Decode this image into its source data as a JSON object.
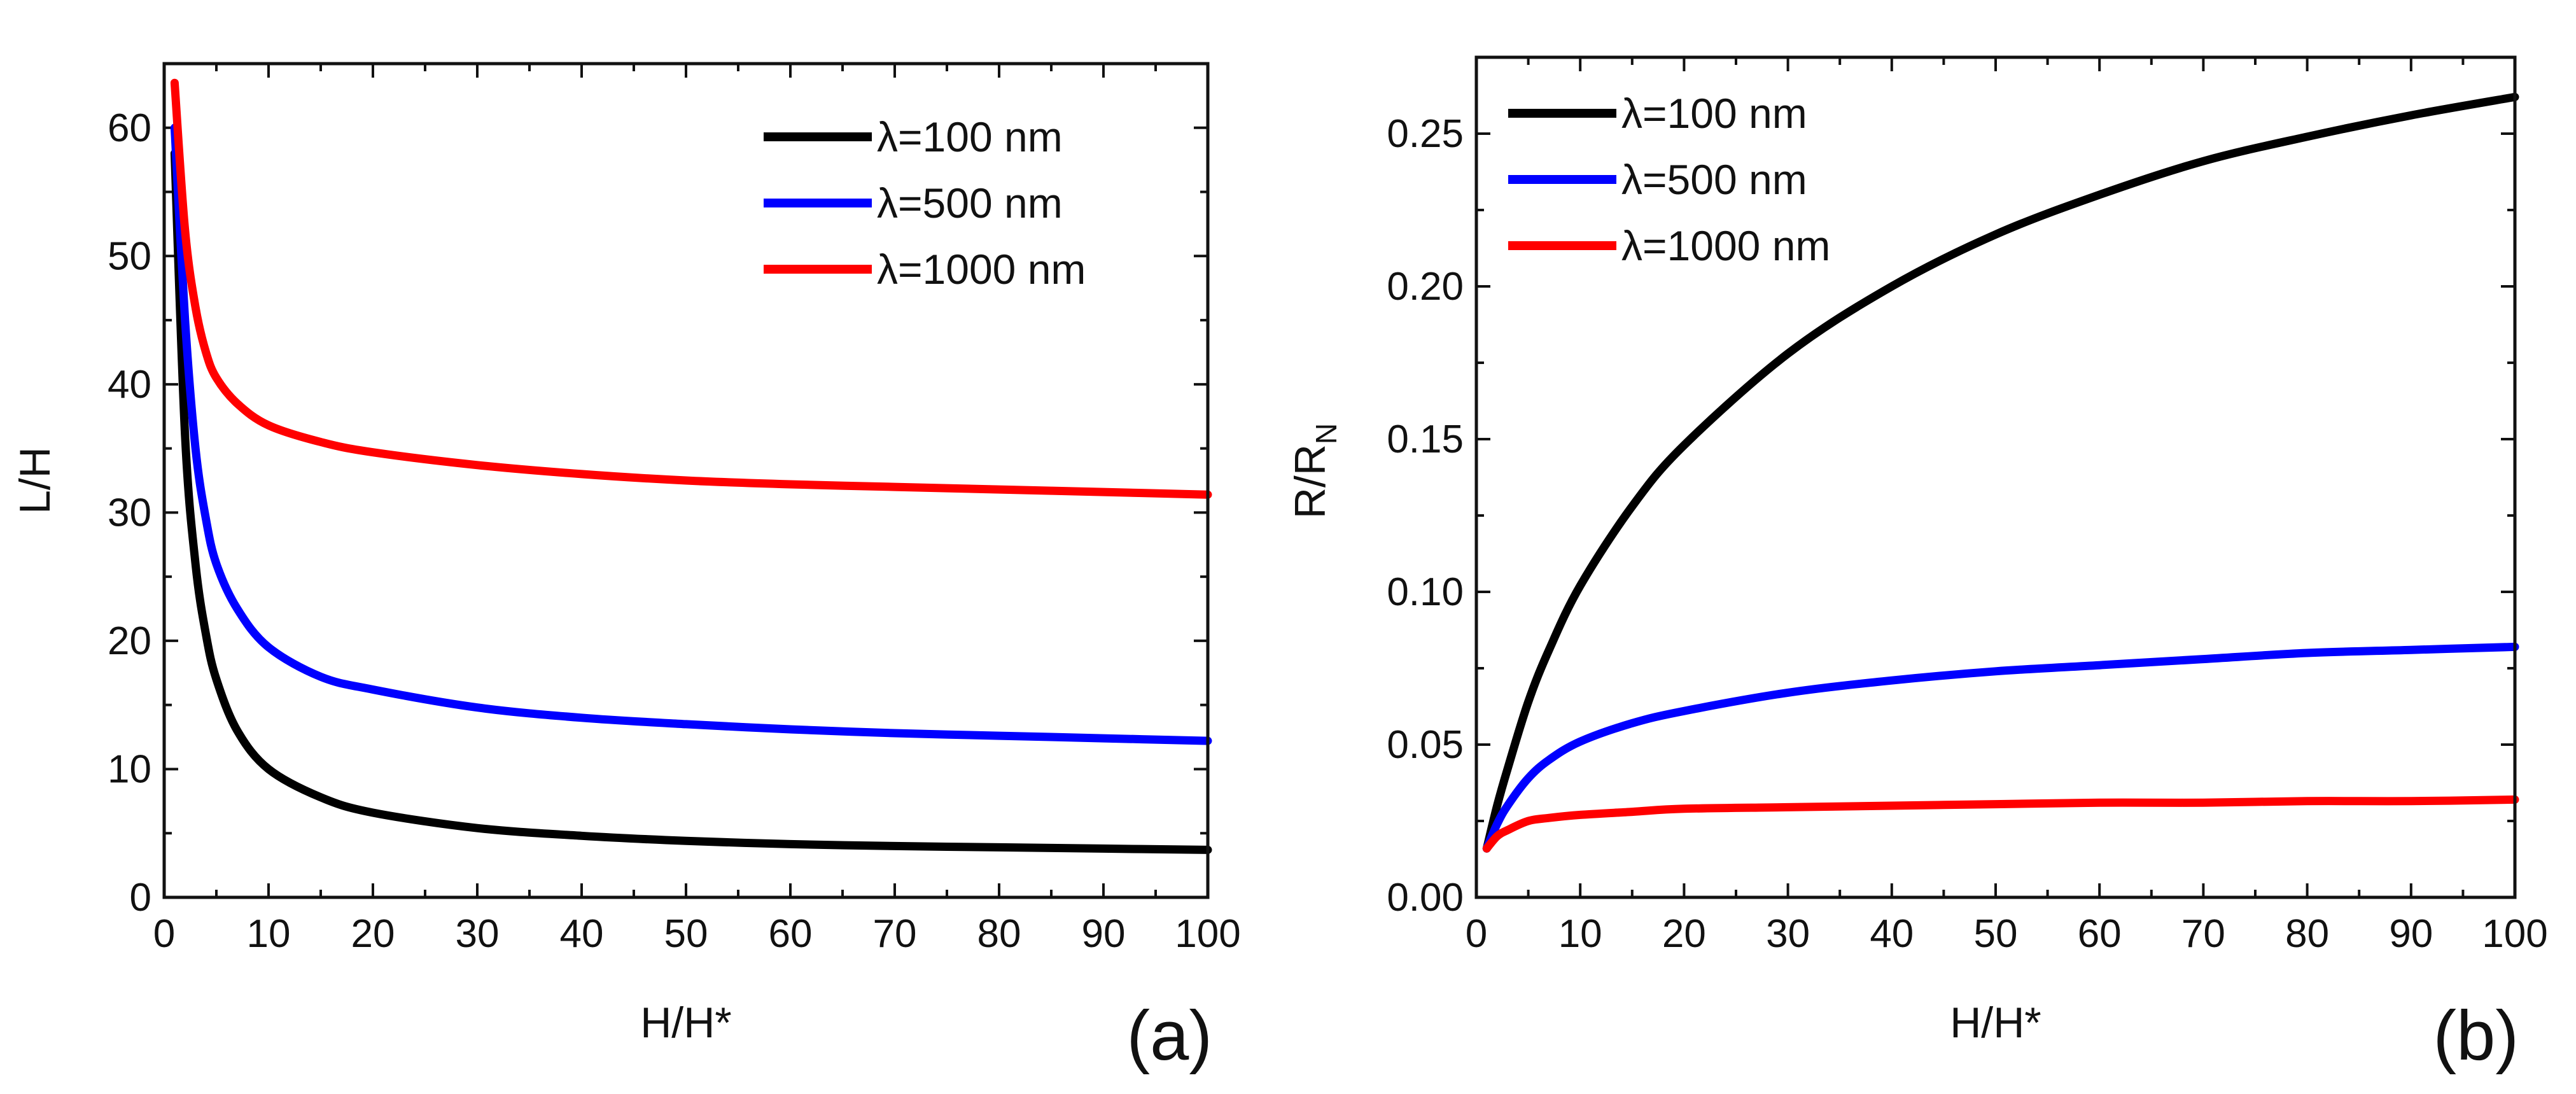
{
  "chart_data": [
    {
      "type": "line",
      "panel_label": "(a)",
      "xlabel": "H/H*",
      "ylabel": "L/H",
      "xlim": [
        0,
        100
      ],
      "ylim": [
        0,
        65
      ],
      "xticks": [
        0,
        10,
        20,
        30,
        40,
        50,
        60,
        70,
        80,
        90,
        100
      ],
      "yticks": [
        0,
        10,
        20,
        30,
        40,
        50,
        60
      ],
      "legend_position": "top-right",
      "series": [
        {
          "name": "λ=100 nm",
          "color": "#000000",
          "x": [
            1,
            2,
            3,
            4,
            5,
            7,
            10,
            15,
            20,
            30,
            40,
            50,
            60,
            70,
            80,
            90,
            100
          ],
          "y": [
            58,
            36,
            26,
            20.5,
            17,
            13,
            10,
            7.8,
            6.6,
            5.4,
            4.8,
            4.4,
            4.15,
            4.0,
            3.9,
            3.8,
            3.7
          ]
        },
        {
          "name": "λ=500 nm",
          "color": "#0000ff",
          "x": [
            1,
            2,
            3,
            4,
            5,
            7,
            10,
            15,
            20,
            30,
            40,
            50,
            60,
            70,
            80,
            90,
            100
          ],
          "y": [
            60,
            45,
            35,
            29.5,
            26,
            22.5,
            19.5,
            17.2,
            16.2,
            14.8,
            14.0,
            13.5,
            13.1,
            12.8,
            12.6,
            12.4,
            12.2
          ]
        },
        {
          "name": "λ=1000 nm",
          "color": "#ff0000",
          "x": [
            1,
            2,
            3,
            4,
            5,
            7,
            10,
            15,
            20,
            30,
            40,
            50,
            60,
            70,
            80,
            90,
            100
          ],
          "y": [
            63.5,
            52,
            46,
            42.5,
            40.5,
            38.5,
            36.8,
            35.5,
            34.7,
            33.7,
            33.0,
            32.5,
            32.2,
            32.0,
            31.8,
            31.6,
            31.4
          ]
        }
      ]
    },
    {
      "type": "line",
      "panel_label": "(b)",
      "xlabel": "H/H*",
      "ylabel": "R/R",
      "ylabel_subscript": "N",
      "xlim": [
        0,
        100
      ],
      "ylim": [
        0,
        0.275
      ],
      "xticks": [
        0,
        10,
        20,
        30,
        40,
        50,
        60,
        70,
        80,
        90,
        100
      ],
      "yticks": [
        "0.00",
        "0.05",
        "0.10",
        "0.15",
        "0.20",
        "0.25"
      ],
      "legend_position": "top-left",
      "series": [
        {
          "name": "λ=100 nm",
          "color": "#000000",
          "x": [
            1,
            2,
            3,
            5,
            7,
            10,
            15,
            20,
            30,
            40,
            50,
            60,
            70,
            80,
            90,
            100
          ],
          "y": [
            0.016,
            0.03,
            0.042,
            0.064,
            0.081,
            0.102,
            0.128,
            0.148,
            0.178,
            0.2,
            0.217,
            0.23,
            0.241,
            0.249,
            0.256,
            0.262
          ]
        },
        {
          "name": "λ=500 nm",
          "color": "#0000ff",
          "x": [
            1,
            2,
            3,
            5,
            7,
            10,
            15,
            20,
            30,
            40,
            50,
            60,
            70,
            80,
            90,
            100
          ],
          "y": [
            0.016,
            0.024,
            0.03,
            0.039,
            0.045,
            0.051,
            0.057,
            0.061,
            0.067,
            0.071,
            0.074,
            0.076,
            0.078,
            0.08,
            0.081,
            0.082
          ]
        },
        {
          "name": "λ=1000 nm",
          "color": "#ff0000",
          "x": [
            1,
            2,
            3,
            5,
            7,
            10,
            15,
            20,
            30,
            40,
            50,
            60,
            70,
            80,
            90,
            100
          ],
          "y": [
            0.016,
            0.02,
            0.022,
            0.025,
            0.026,
            0.027,
            0.028,
            0.029,
            0.0295,
            0.03,
            0.0305,
            0.031,
            0.031,
            0.0315,
            0.0315,
            0.032
          ]
        }
      ]
    }
  ]
}
